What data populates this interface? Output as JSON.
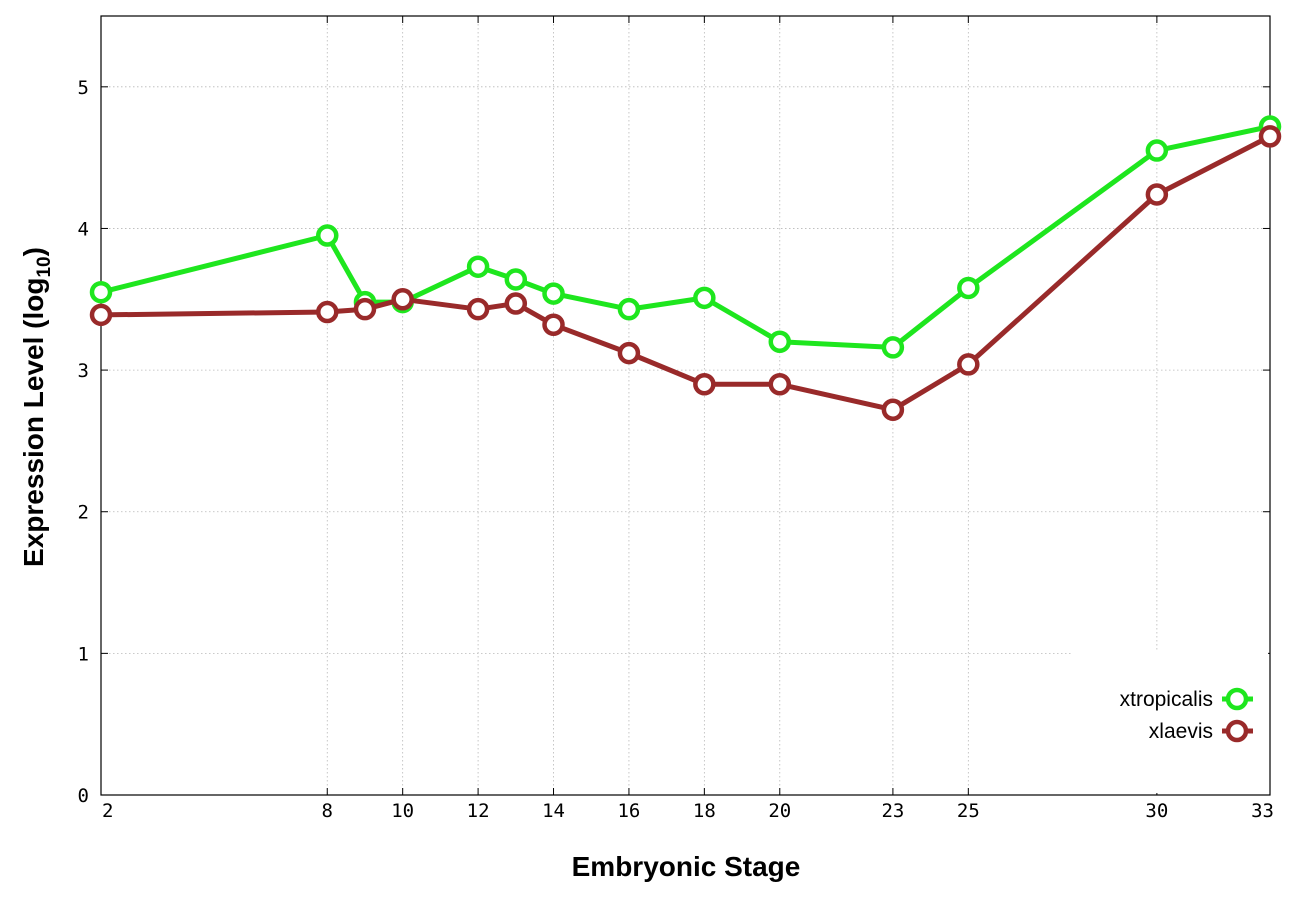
{
  "chart_data": {
    "type": "line",
    "xlabel": "Embryonic Stage",
    "ylabel_main": "Expression Level (log",
    "ylabel_sub": "10",
    "ylabel_close": ")",
    "xlim": [
      2,
      33
    ],
    "ylim": [
      0,
      5.5
    ],
    "x_ticks": [
      2,
      8,
      10,
      12,
      14,
      16,
      18,
      20,
      23,
      25,
      30,
      33
    ],
    "y_ticks": [
      0,
      1,
      2,
      3,
      4,
      5
    ],
    "grid": true,
    "legend_position": "bottom-right",
    "series": [
      {
        "name": "xtropicalis",
        "color": "#1ee61e",
        "x": [
          2,
          8,
          9,
          10,
          12,
          13,
          14,
          16,
          18,
          20,
          23,
          25,
          30,
          33
        ],
        "y": [
          3.55,
          3.95,
          3.48,
          3.48,
          3.73,
          3.64,
          3.54,
          3.43,
          3.51,
          3.2,
          3.16,
          3.58,
          4.55,
          4.72
        ]
      },
      {
        "name": "xlaevis",
        "color": "#992a2a",
        "x": [
          2,
          8,
          9,
          10,
          12,
          13,
          14,
          16,
          18,
          20,
          23,
          25,
          30,
          33
        ],
        "y": [
          3.39,
          3.41,
          3.43,
          3.5,
          3.43,
          3.47,
          3.32,
          3.12,
          2.9,
          2.9,
          2.72,
          3.04,
          4.24,
          4.65
        ]
      }
    ]
  }
}
